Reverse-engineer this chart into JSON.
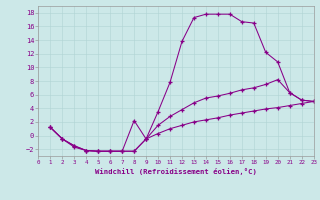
{
  "xlabel": "Windchill (Refroidissement éolien,°C)",
  "background_color": "#cce8e8",
  "line_color": "#880088",
  "xlim": [
    0,
    23
  ],
  "ylim": [
    -3,
    19
  ],
  "xticks": [
    0,
    1,
    2,
    3,
    4,
    5,
    6,
    7,
    8,
    9,
    10,
    11,
    12,
    13,
    14,
    15,
    16,
    17,
    18,
    19,
    20,
    21,
    22,
    23
  ],
  "yticks": [
    -2,
    0,
    2,
    4,
    6,
    8,
    10,
    12,
    14,
    16,
    18
  ],
  "curves": [
    {
      "x": [
        1,
        2,
        3,
        4,
        5,
        6,
        7,
        8,
        9,
        10,
        11,
        12,
        13,
        14,
        15,
        16,
        17,
        18,
        19,
        20,
        21,
        22,
        23
      ],
      "y": [
        1.2,
        -0.5,
        -1.5,
        -2.2,
        -2.3,
        -2.3,
        -2.3,
        2.2,
        -0.5,
        3.5,
        7.8,
        13.8,
        17.3,
        17.8,
        17.8,
        17.8,
        16.7,
        16.5,
        12.2,
        10.8,
        6.3,
        5.2,
        5.0
      ]
    },
    {
      "x": [
        1,
        2,
        3,
        4,
        5,
        6,
        7,
        8,
        9,
        10,
        11,
        12,
        13,
        14,
        15,
        16,
        17,
        18,
        19,
        20,
        21,
        22,
        23
      ],
      "y": [
        1.2,
        -0.5,
        -1.5,
        -2.2,
        -2.3,
        -2.3,
        -2.3,
        -2.3,
        -0.5,
        1.5,
        2.8,
        3.8,
        4.8,
        5.5,
        5.8,
        6.2,
        6.7,
        7.0,
        7.5,
        8.2,
        6.3,
        5.2,
        5.0
      ]
    },
    {
      "x": [
        1,
        2,
        3,
        4,
        5,
        6,
        7,
        8,
        9,
        10,
        11,
        12,
        13,
        14,
        15,
        16,
        17,
        18,
        19,
        20,
        21,
        22,
        23
      ],
      "y": [
        1.2,
        -0.5,
        -1.7,
        -2.2,
        -2.3,
        -2.3,
        -2.3,
        -2.3,
        -0.5,
        0.3,
        1.0,
        1.5,
        2.0,
        2.3,
        2.6,
        3.0,
        3.3,
        3.6,
        3.9,
        4.1,
        4.4,
        4.7,
        5.0
      ]
    }
  ]
}
